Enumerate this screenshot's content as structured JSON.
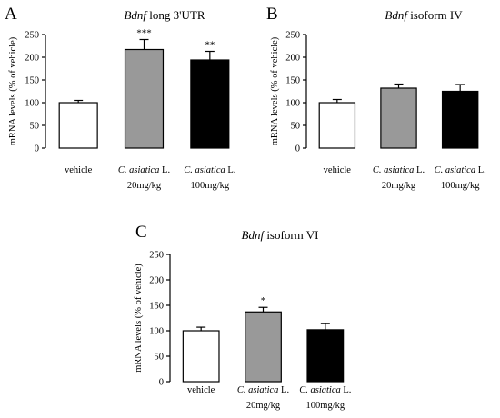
{
  "chart_data": [
    {
      "panel": "A",
      "type": "bar",
      "title_italic": "Bdnf",
      "title_rest": " long 3'UTR",
      "ylabel": "mRNA levels (% of vehicle)",
      "ylim": [
        0,
        250
      ],
      "yticks": [
        "0",
        "50",
        "100",
        "150",
        "200",
        "250"
      ],
      "categories": [
        {
          "line1_italic": "",
          "line1_rest": "vehicle",
          "line2": ""
        },
        {
          "line1_italic": "C. asiatica",
          "line1_rest": " L.",
          "line2": "20mg/kg"
        },
        {
          "line1_italic": "C. asiatica",
          "line1_rest": " L.",
          "line2": "100mg/kg"
        }
      ],
      "values": [
        100,
        217,
        194
      ],
      "errors": [
        5,
        22,
        19
      ],
      "fills": [
        "#ffffff",
        "#999999",
        "#000000"
      ],
      "significance": [
        "",
        "***",
        "**"
      ]
    },
    {
      "panel": "B",
      "type": "bar",
      "title_italic": "Bdnf",
      "title_rest": " isoform IV",
      "ylabel": "mRNA levels (% of vehicle)",
      "ylim": [
        0,
        250
      ],
      "yticks": [
        "0",
        "50",
        "100",
        "150",
        "200",
        "250"
      ],
      "categories": [
        {
          "line1_italic": "",
          "line1_rest": "vehicle",
          "line2": ""
        },
        {
          "line1_italic": "C. asiatica",
          "line1_rest": " L.",
          "line2": "20mg/kg"
        },
        {
          "line1_italic": "C. asiatica",
          "line1_rest": " L.",
          "line2": "100mg/kg"
        }
      ],
      "values": [
        100,
        132,
        125
      ],
      "errors": [
        7,
        9,
        15
      ],
      "fills": [
        "#ffffff",
        "#999999",
        "#000000"
      ],
      "significance": [
        "",
        "",
        ""
      ]
    },
    {
      "panel": "C",
      "type": "bar",
      "title_italic": "Bdnf",
      "title_rest": " isoform VI",
      "ylabel": "mRNA levels (% of vehicle)",
      "ylim": [
        0,
        250
      ],
      "yticks": [
        "0",
        "50",
        "100",
        "150",
        "200",
        "250"
      ],
      "categories": [
        {
          "line1_italic": "",
          "line1_rest": "vehicle",
          "line2": ""
        },
        {
          "line1_italic": "C. asiatica",
          "line1_rest": " L.",
          "line2": "20mg/kg"
        },
        {
          "line1_italic": "C. asiatica",
          "line1_rest": " L.",
          "line2": "100mg/kg"
        }
      ],
      "values": [
        100,
        137,
        102
      ],
      "errors": [
        7,
        9,
        12
      ],
      "fills": [
        "#ffffff",
        "#999999",
        "#000000"
      ],
      "significance": [
        "",
        "*",
        ""
      ]
    }
  ]
}
